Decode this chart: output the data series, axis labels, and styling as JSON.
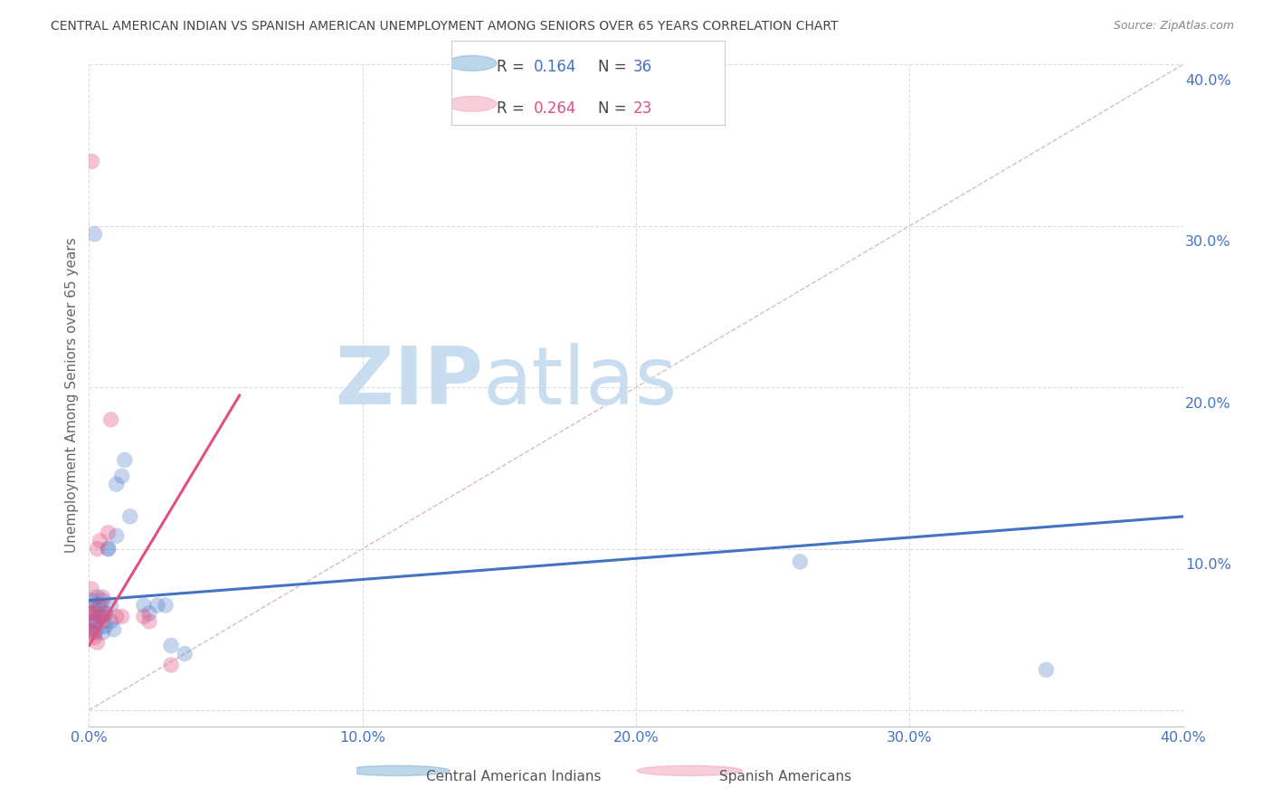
{
  "title": "CENTRAL AMERICAN INDIAN VS SPANISH AMERICAN UNEMPLOYMENT AMONG SENIORS OVER 65 YEARS CORRELATION CHART",
  "source": "Source: ZipAtlas.com",
  "ylabel": "Unemployment Among Seniors over 65 years",
  "xlim": [
    0.0,
    0.4
  ],
  "ylim": [
    -0.01,
    0.4
  ],
  "yticks": [
    0.0,
    0.1,
    0.2,
    0.3,
    0.4
  ],
  "xticks": [
    0.0,
    0.1,
    0.2,
    0.3,
    0.4
  ],
  "blue_scatter_x": [
    0.0,
    0.001,
    0.001,
    0.001,
    0.002,
    0.002,
    0.002,
    0.003,
    0.003,
    0.003,
    0.004,
    0.004,
    0.005,
    0.005,
    0.005,
    0.006,
    0.006,
    0.007,
    0.007,
    0.008,
    0.008,
    0.009,
    0.01,
    0.01,
    0.012,
    0.013,
    0.015,
    0.02,
    0.022,
    0.025,
    0.028,
    0.03,
    0.035,
    0.26,
    0.35,
    0.002
  ],
  "blue_scatter_y": [
    0.05,
    0.055,
    0.06,
    0.068,
    0.065,
    0.055,
    0.048,
    0.07,
    0.06,
    0.05,
    0.065,
    0.058,
    0.068,
    0.058,
    0.048,
    0.06,
    0.052,
    0.1,
    0.1,
    0.065,
    0.055,
    0.05,
    0.108,
    0.14,
    0.145,
    0.155,
    0.12,
    0.065,
    0.06,
    0.065,
    0.065,
    0.04,
    0.035,
    0.092,
    0.025,
    0.295
  ],
  "pink_scatter_x": [
    0.0,
    0.0,
    0.001,
    0.001,
    0.001,
    0.002,
    0.002,
    0.003,
    0.003,
    0.003,
    0.004,
    0.004,
    0.005,
    0.005,
    0.006,
    0.007,
    0.008,
    0.01,
    0.012,
    0.02,
    0.022,
    0.03,
    0.001
  ],
  "pink_scatter_y": [
    0.06,
    0.05,
    0.075,
    0.06,
    0.048,
    0.055,
    0.045,
    0.1,
    0.065,
    0.042,
    0.105,
    0.058,
    0.07,
    0.055,
    0.06,
    0.11,
    0.18,
    0.058,
    0.058,
    0.058,
    0.055,
    0.028,
    0.34
  ],
  "blue_line_x": [
    0.0,
    0.4
  ],
  "blue_line_y": [
    0.068,
    0.12
  ],
  "pink_line_x": [
    0.0,
    0.055
  ],
  "pink_line_y": [
    0.04,
    0.195
  ],
  "blue_line_color": "#4472c4",
  "pink_line_color": "#e05080",
  "diag_line_color": "#ddbbbb",
  "background_color": "#ffffff",
  "grid_color": "#dddddd",
  "axis_color": "#4472c4",
  "title_color": "#444444",
  "ylabel_color": "#666666",
  "watermark_zip_color": "#c8ddf0",
  "watermark_atlas_color": "#c8ddf0",
  "legend_blue_R": "0.164",
  "legend_blue_N": "36",
  "legend_pink_R": "0.264",
  "legend_pink_N": "23",
  "legend_blue_color": "#7bafd4",
  "legend_pink_color": "#f0a0b8",
  "legend_R_color_blue": "#4472c4",
  "legend_R_color_pink": "#e05080",
  "legend_N_color_blue": "#4472c4",
  "legend_N_color_pink": "#e05080"
}
